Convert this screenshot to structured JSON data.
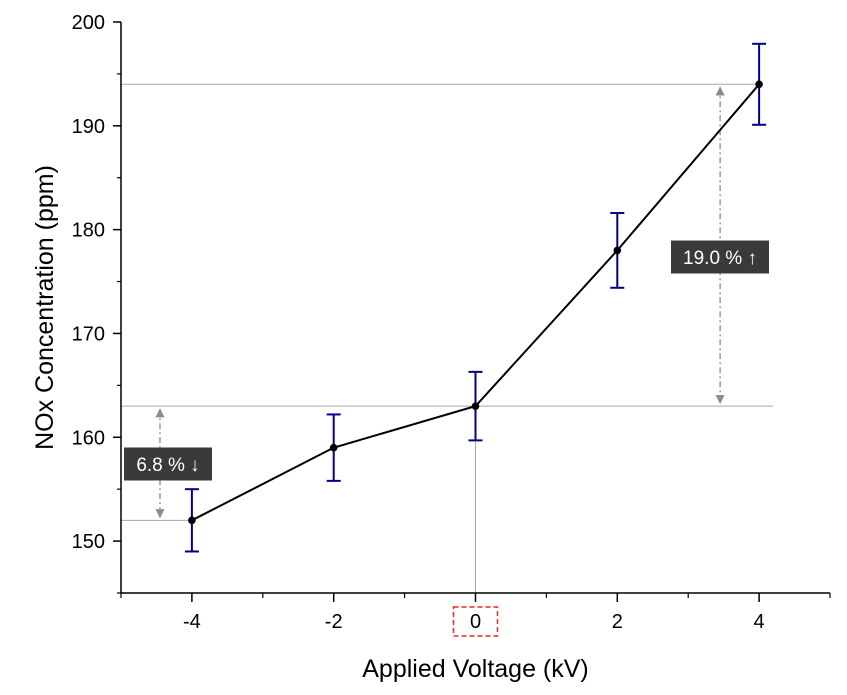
{
  "chart_data": {
    "type": "line",
    "title": "",
    "xlabel": "Applied Voltage (kV)",
    "ylabel": "NOx Concentration (ppm)",
    "xlim": [
      -5,
      5
    ],
    "ylim": [
      145,
      200
    ],
    "xticks": [
      -4,
      -2,
      0,
      2,
      4
    ],
    "xtick_labels": [
      "-4",
      "-2",
      "0",
      "2",
      "4"
    ],
    "yticks": [
      150,
      160,
      170,
      180,
      190,
      200
    ],
    "ytick_labels": [
      "150",
      "160",
      "170",
      "180",
      "190",
      "200"
    ],
    "grid": false,
    "legend": "none",
    "series": [
      {
        "x": [
          -4,
          -2,
          0,
          2,
          4
        ],
        "y": [
          152,
          159,
          163,
          178,
          194
        ],
        "error": [
          3.0,
          3.2,
          3.3,
          3.6,
          3.9
        ]
      }
    ],
    "reference_lines": {
      "horizontal": [
        194,
        163,
        152
      ],
      "vertical": [
        0
      ]
    },
    "highlighted_tick": "0",
    "annotations": [
      {
        "text": "6.8 % ↓",
        "from_y": 163,
        "to_y": 152,
        "at_x": -4.45
      },
      {
        "text": "19.0 % ↑",
        "from_y": 163,
        "to_y": 194,
        "at_x": 3.45
      }
    ],
    "colors": {
      "line": "#000000",
      "marker": "#000000",
      "error_bar": "#00008b",
      "reference_line": "#a8a8a8",
      "annotation_arrow": "#8c8c8c",
      "annotation_box": "#3a3a3a",
      "highlight_box": "#e8262a"
    }
  }
}
